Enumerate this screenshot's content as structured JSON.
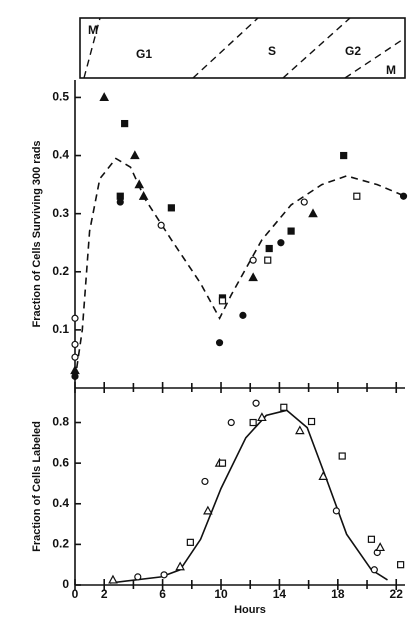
{
  "phase_band": {
    "labels": [
      "M",
      "G1",
      "S",
      "G2",
      "M"
    ]
  },
  "chart_data": [
    {
      "type": "scatter",
      "ylabel": "Fraction of Cells Surviving 300 rads",
      "xlim": [
        0,
        22.6
      ],
      "ylim": [
        0,
        0.53
      ],
      "xticks": [
        0,
        2,
        6,
        10,
        14,
        18,
        22
      ],
      "xminor": [
        4,
        8,
        12,
        16,
        20
      ],
      "yticks": [
        0.1,
        0.2,
        0.3,
        0.4,
        0.5
      ],
      "series": [
        {
          "marker": "triangle",
          "filled": true,
          "color": "#111",
          "x": [
            2.0,
            4.1,
            4.4,
            4.7,
            12.2,
            16.3,
            0
          ],
          "values": [
            0.5,
            0.4,
            0.35,
            0.33,
            0.19,
            0.3,
            0.03
          ]
        },
        {
          "marker": "square",
          "filled": true,
          "color": "#111",
          "x": [
            3.4,
            3.1,
            6.6,
            10.1,
            13.3,
            14.8,
            18.4
          ],
          "values": [
            0.455,
            0.33,
            0.31,
            0.155,
            0.24,
            0.27,
            0.4
          ]
        },
        {
          "marker": "circle",
          "filled": false,
          "color": "#111",
          "x": [
            0,
            0,
            0,
            5.9,
            12.2,
            15.7
          ],
          "values": [
            0.12,
            0.053,
            0.075,
            0.28,
            0.22,
            0.32
          ]
        },
        {
          "marker": "circle",
          "filled": true,
          "color": "#111",
          "x": [
            3.1,
            9.9,
            11.5,
            14.1,
            22.5,
            0
          ],
          "values": [
            0.32,
            0.078,
            0.125,
            0.25,
            0.33,
            0.02
          ]
        },
        {
          "marker": "square",
          "filled": false,
          "color": "#111",
          "x": [
            10.1,
            13.2,
            19.3
          ],
          "values": [
            0.15,
            0.22,
            0.33
          ]
        }
      ],
      "curve": {
        "dash": true,
        "x": [
          0,
          0.5,
          1.0,
          1.7,
          2.8,
          3.8,
          4.8,
          6.6,
          8.6,
          9.9,
          10.7,
          12.8,
          14.8,
          16.9,
          18.6,
          20.7,
          22.6
        ],
        "y": [
          0.014,
          0.1,
          0.27,
          0.36,
          0.395,
          0.38,
          0.325,
          0.255,
          0.18,
          0.12,
          0.16,
          0.255,
          0.315,
          0.35,
          0.365,
          0.35,
          0.33
        ]
      }
    },
    {
      "type": "scatter",
      "ylabel": "Fraction of Cells Labeled",
      "xlabel": "Hours",
      "xlim": [
        0,
        22.6
      ],
      "ylim": [
        0,
        0.97
      ],
      "xticks": [
        0,
        2,
        6,
        10,
        14,
        18,
        22
      ],
      "xminor": [
        4,
        8,
        12,
        16,
        20
      ],
      "yticks": [
        0,
        0.2,
        0.4,
        0.6,
        0.8
      ],
      "series": [
        {
          "marker": "circle",
          "filled": false,
          "color": "#111",
          "x": [
            4.3,
            6.1,
            8.9,
            10.7,
            12.4,
            17.9,
            20.7,
            20.5
          ],
          "values": [
            0.04,
            0.05,
            0.51,
            0.8,
            0.895,
            0.365,
            0.16,
            0.075
          ]
        },
        {
          "marker": "triangle",
          "filled": false,
          "color": "#111",
          "x": [
            2.6,
            7.2,
            9.1,
            9.9,
            12.8,
            15.4,
            17.0,
            20.9
          ],
          "values": [
            0.025,
            0.09,
            0.365,
            0.6,
            0.825,
            0.76,
            0.535,
            0.185
          ]
        },
        {
          "marker": "square",
          "filled": false,
          "color": "#111",
          "x": [
            7.9,
            10.1,
            12.2,
            14.3,
            16.2,
            18.3,
            20.3,
            22.3
          ],
          "values": [
            0.21,
            0.6,
            0.8,
            0.875,
            0.805,
            0.635,
            0.225,
            0.1
          ]
        }
      ],
      "curve": {
        "dash": false,
        "x": [
          2.4,
          5.9,
          7.2,
          8.6,
          10,
          11.7,
          13.1,
          14.5,
          15.9,
          17.2,
          18.6,
          20.3,
          21.4
        ],
        "y": [
          0.01,
          0.04,
          0.075,
          0.225,
          0.475,
          0.725,
          0.835,
          0.86,
          0.775,
          0.525,
          0.25,
          0.075,
          0.025
        ]
      }
    }
  ]
}
